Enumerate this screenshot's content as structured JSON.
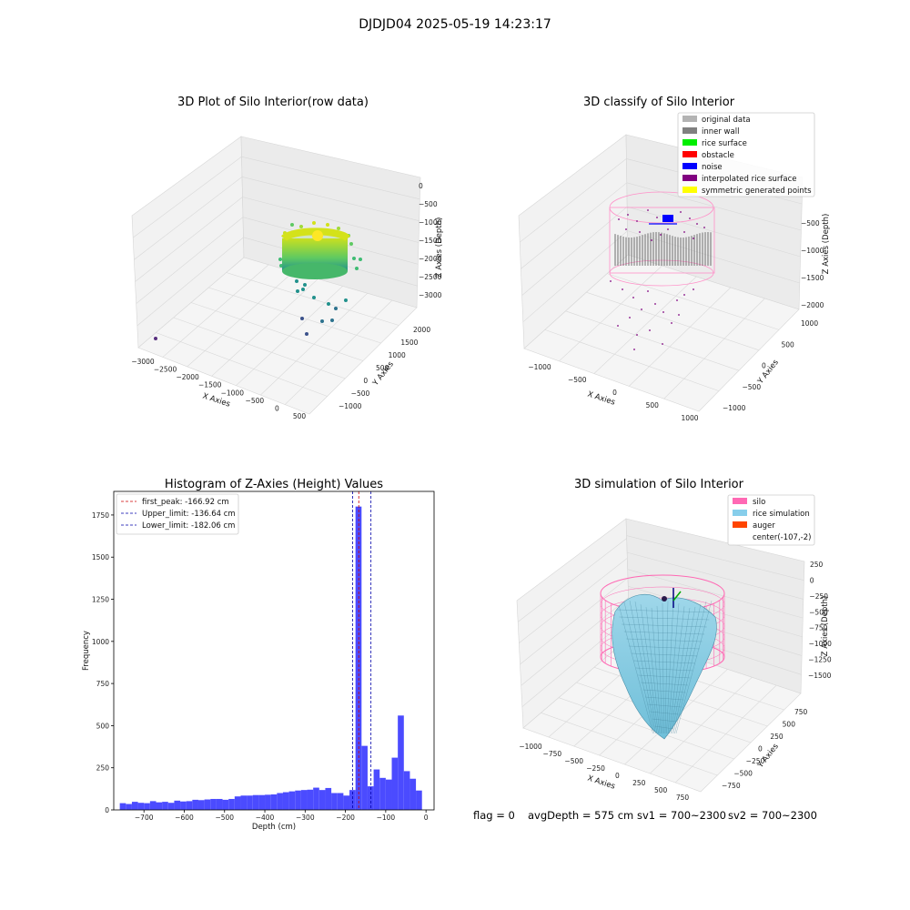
{
  "figure": {
    "title": "DJDJD04 2025-05-19 14:23:17",
    "status": {
      "flag": "flag = 0",
      "avg_depth": "avgDepth = 575 cm",
      "sv1": "sv1 = 700~2300",
      "sv2": "sv2 = 700~2300"
    }
  },
  "chart_data": [
    {
      "type": "scatter",
      "projection": "3d",
      "title": "3D Plot of Silo Interior(row data)",
      "xlabel": "X Axies",
      "ylabel": "Y Axies",
      "zlabel": "Z Axies (Depth)",
      "x_ticks": [
        "−3000",
        "−2500",
        "−2000",
        "−1500",
        "−1000",
        "−500",
        "0",
        "500"
      ],
      "y_ticks": [
        "−1000",
        "−500",
        "0",
        "500",
        "1000",
        "1500",
        "2000"
      ],
      "z_ticks": [
        "0",
        "−500",
        "−1000",
        "−1500",
        "−2000",
        "−2500",
        "−3000"
      ],
      "colormap": [
        "#440154",
        "#3b528b",
        "#21918c",
        "#5ec962",
        "#fde725"
      ],
      "grid": true
    },
    {
      "type": "scatter",
      "projection": "3d",
      "title": "3D classify of Silo Interior",
      "xlabel": "X Axies",
      "ylabel": "Y Axies",
      "zlabel": "Z Axies (Depth)",
      "x_ticks": [
        "−1000",
        "−500",
        "0",
        "500",
        "1000"
      ],
      "y_ticks": [
        "−1000",
        "−500",
        "0",
        "500",
        "1000"
      ],
      "z_ticks": [
        "−500",
        "−1000",
        "−1500",
        "−2000"
      ],
      "legend_position": "top-right",
      "legend": [
        {
          "label": "original data",
          "color": "#b3b3b3"
        },
        {
          "label": "inner wall",
          "color": "#808080"
        },
        {
          "label": "rice surface",
          "color": "#00ee00"
        },
        {
          "label": "obstacle",
          "color": "#ff0000"
        },
        {
          "label": "noise",
          "color": "#0000ff"
        },
        {
          "label": "interpolated rice surface",
          "color": "#800080"
        },
        {
          "label": "symmetric generated points",
          "color": "#ffff00"
        }
      ],
      "grid": true
    },
    {
      "type": "bar",
      "title": "Histogram of Z-Axies (Height) Values",
      "xlabel": "Depth (cm)",
      "ylabel": "Frequency",
      "xlim": [
        -775,
        20
      ],
      "ylim": [
        0,
        1890
      ],
      "x_ticks": [
        -700,
        -600,
        -500,
        -400,
        -300,
        -200,
        -100,
        0
      ],
      "x_tick_labels": [
        "−700",
        "−600",
        "−500",
        "−400",
        "−300",
        "−200",
        "−100",
        "0"
      ],
      "y_ticks": [
        0,
        250,
        500,
        750,
        1000,
        1250,
        1500,
        1750
      ],
      "bar_color": "#4b4bff",
      "bin_width": 15,
      "bin_start": -760,
      "counts": [
        40,
        35,
        48,
        42,
        40,
        52,
        45,
        48,
        42,
        55,
        50,
        52,
        60,
        58,
        62,
        65,
        65,
        60,
        65,
        80,
        85,
        85,
        88,
        88,
        90,
        92,
        100,
        105,
        110,
        115,
        118,
        120,
        132,
        118,
        130,
        100,
        100,
        85,
        118,
        1800,
        380,
        140,
        240,
        190,
        180,
        310,
        560,
        230,
        185,
        115
      ],
      "vlines": [
        {
          "label": "first_peak: -166.92 cm",
          "value": -166.92,
          "color": "#cc0000"
        },
        {
          "label": "Upper_limit: -136.64 cm",
          "value": -136.64,
          "color": "#0000aa"
        },
        {
          "label": "Lower_limit: -182.06 cm",
          "value": -182.06,
          "color": "#0000aa"
        }
      ],
      "legend_position": "top-left",
      "grid": false
    },
    {
      "type": "surface",
      "projection": "3d",
      "title": "3D simulation of Silo Interior",
      "xlabel": "X Axies",
      "ylabel": "Y Axies",
      "zlabel": "Z Axies (Depth)",
      "x_ticks": [
        "−1000",
        "−750",
        "−500",
        "−250",
        "0",
        "250",
        "500",
        "750"
      ],
      "y_ticks": [
        "−750",
        "−500",
        "−250",
        "0",
        "250",
        "500",
        "750"
      ],
      "z_ticks": [
        "250",
        "0",
        "−250",
        "−500",
        "−750",
        "−1000",
        "−1250",
        "−1500"
      ],
      "legend_position": "top-right",
      "legend": [
        {
          "label": "silo",
          "color": "#ff69b4"
        },
        {
          "label": "rice simulation",
          "color": "#87ceeb"
        },
        {
          "label": "auger",
          "color": "#ff4500"
        },
        {
          "label": "center(-107,-2)",
          "color": ""
        }
      ],
      "grid": true
    }
  ]
}
